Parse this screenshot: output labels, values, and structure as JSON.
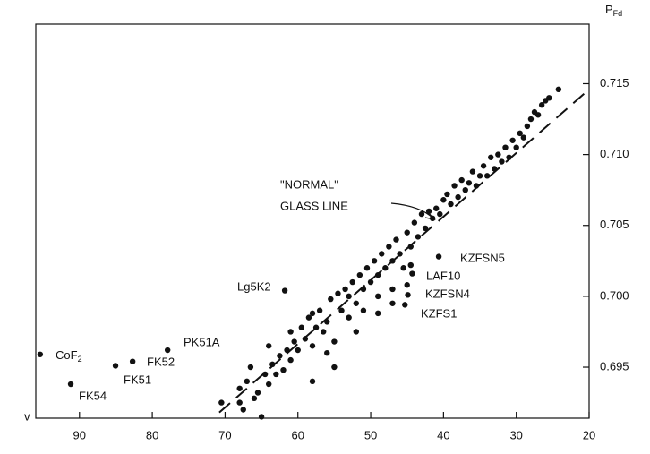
{
  "chart_data": {
    "type": "scatter",
    "y_label": {
      "main": "P",
      "sub": "Fd"
    },
    "x_label": "v",
    "xlim": [
      96,
      20
    ],
    "ylim": [
      0.6914,
      0.7192
    ],
    "xticks": [
      90,
      80,
      70,
      60,
      50,
      40,
      30,
      20
    ],
    "yticks": [
      0.715,
      {
        "value": 0.71,
        "label": "0.710"
      },
      0.705,
      {
        "value": 0.7,
        "label": "0.700"
      },
      0.695
    ],
    "color": "#111111",
    "x": [
      95.4,
      91.2,
      85.05,
      82.7,
      77.9,
      61.8,
      40.65,
      44.3,
      44.9,
      45.3,
      68,
      68,
      67.5,
      67,
      66.5,
      66,
      65.5,
      65,
      64.5,
      64,
      64,
      63.5,
      63,
      62.5,
      62,
      61.5,
      61,
      61,
      60.5,
      60,
      59.5,
      59,
      58.5,
      58,
      58,
      57.5,
      57,
      56.5,
      56,
      56,
      55.5,
      55,
      55,
      54.5,
      54,
      53.5,
      53,
      53,
      52.5,
      52,
      51.5,
      51,
      51,
      50.5,
      50,
      49.5,
      49,
      49,
      48.5,
      48,
      47.5,
      47,
      47,
      46.5,
      46,
      45.5,
      45,
      44.5,
      44,
      43.5,
      43,
      42.5,
      42,
      41.5,
      41,
      40.5,
      40,
      39.5,
      39,
      38.5,
      38,
      37.5,
      37,
      36.5,
      36,
      35.5,
      35,
      34.5,
      34,
      33.5,
      33,
      32.5,
      32,
      31.5,
      31,
      30.5,
      30,
      29.5,
      29,
      28.5,
      28,
      27.5,
      27,
      26.5,
      26,
      25.5,
      24.2,
      70.5,
      58,
      52,
      49,
      47,
      45,
      44.5
    ],
    "y": [
      0.6959,
      0.6938,
      0.6951,
      0.6954,
      0.6962,
      0.7004,
      0.7028,
      0.7016,
      0.7001,
      0.6994,
      0.6935,
      0.6925,
      0.692,
      0.694,
      0.695,
      0.6928,
      0.6932,
      0.6915,
      0.6945,
      0.6965,
      0.6938,
      0.6952,
      0.6945,
      0.6958,
      0.6948,
      0.6962,
      0.6975,
      0.6955,
      0.6968,
      0.6962,
      0.6978,
      0.697,
      0.6985,
      0.6965,
      0.6988,
      0.6978,
      0.699,
      0.6975,
      0.696,
      0.6982,
      0.6998,
      0.6968,
      0.695,
      0.7002,
      0.699,
      0.7005,
      0.6985,
      0.7,
      0.701,
      0.6995,
      0.7015,
      0.699,
      0.7005,
      0.702,
      0.701,
      0.7025,
      0.7,
      0.7015,
      0.703,
      0.702,
      0.7035,
      0.7005,
      0.7025,
      0.704,
      0.703,
      0.702,
      0.7045,
      0.7035,
      0.7052,
      0.7042,
      0.7058,
      0.7048,
      0.706,
      0.7055,
      0.7062,
      0.7058,
      0.7068,
      0.7072,
      0.7065,
      0.7078,
      0.707,
      0.7082,
      0.7075,
      0.708,
      0.7088,
      0.7078,
      0.7085,
      0.7092,
      0.7085,
      0.7098,
      0.709,
      0.71,
      0.7095,
      0.7105,
      0.7098,
      0.711,
      0.7105,
      0.7115,
      0.7112,
      0.712,
      0.7125,
      0.713,
      0.7128,
      0.7135,
      0.7138,
      0.714,
      0.7146,
      0.6925,
      0.694,
      0.6975,
      0.6988,
      0.6995,
      0.7008,
      0.7022
    ],
    "reference_line": {
      "x": [
        70.8,
        20
      ],
      "y": [
        0.6918,
        0.7146
      ]
    },
    "annotations": [
      {
        "main": "CoF",
        "sub": "2"
      },
      "FK54",
      "FK51",
      "FK52",
      "PK51A",
      "Lg5K2",
      "KZFSN5",
      "LAF10",
      "KZFSN4",
      "KZFS1",
      "\"NORMAL\"",
      "GLASS LINE"
    ]
  }
}
